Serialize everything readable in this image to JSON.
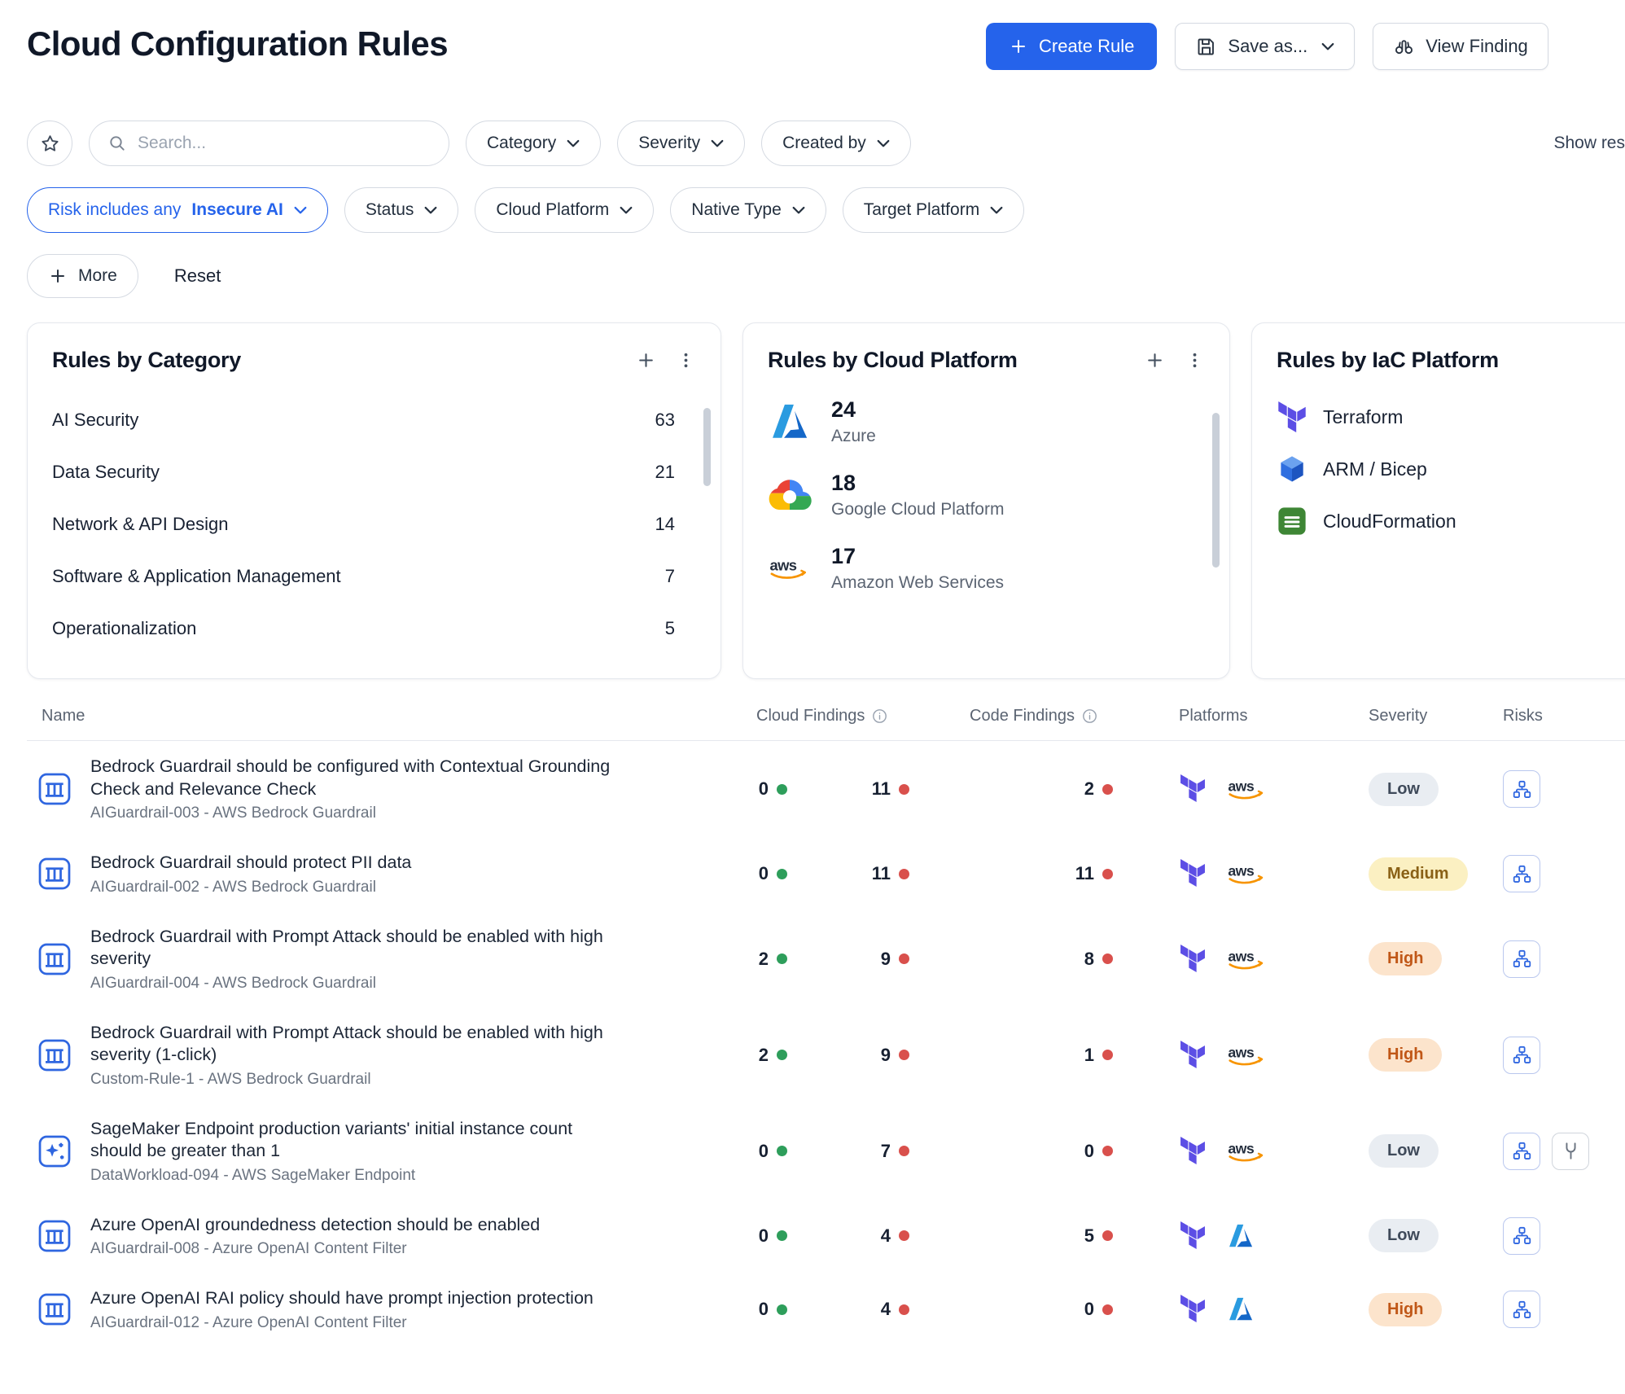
{
  "page": {
    "title": "Cloud Configuration Rules"
  },
  "toolbar": {
    "create_rule_label": "Create Rule",
    "save_as_label": "Save as...",
    "view_findings_label": "View Finding"
  },
  "filters": {
    "search_placeholder": "Search...",
    "show_results_label": "Show res",
    "row1": [
      "Category",
      "Severity",
      "Created by"
    ],
    "active_filter": {
      "prefix": "Risk includes any",
      "value": "Insecure AI"
    },
    "row2": [
      "Status",
      "Cloud Platform",
      "Native Type",
      "Target Platform"
    ],
    "more_label": "More",
    "reset_label": "Reset"
  },
  "cards": {
    "by_category": {
      "title": "Rules by Category",
      "items": [
        {
          "label": "AI Security",
          "value": 63
        },
        {
          "label": "Data Security",
          "value": 21
        },
        {
          "label": "Network & API Design",
          "value": 14
        },
        {
          "label": "Software & Application Management",
          "value": 7
        },
        {
          "label": "Operationalization",
          "value": 5
        }
      ]
    },
    "by_cloud_platform": {
      "title": "Rules by Cloud Platform",
      "items": [
        {
          "icon": "azure-icon",
          "value": 24,
          "label": "Azure"
        },
        {
          "icon": "gcp-icon",
          "value": 18,
          "label": "Google Cloud Platform"
        },
        {
          "icon": "aws-icon",
          "value": 17,
          "label": "Amazon Web Services"
        }
      ]
    },
    "by_iac_platform": {
      "title": "Rules by IaC Platform",
      "items": [
        {
          "icon": "terraform-icon",
          "label": "Terraform"
        },
        {
          "icon": "arm-bicep-icon",
          "label": "ARM / Bicep"
        },
        {
          "icon": "cloudformation-icon",
          "label": "CloudFormation"
        }
      ]
    }
  },
  "table": {
    "headers": {
      "name": "Name",
      "cloud_findings": "Cloud Findings",
      "code_findings": "Code Findings",
      "platforms": "Platforms",
      "severity": "Severity",
      "risks": "Risks"
    },
    "rows": [
      {
        "icon": "guardrail",
        "name": "Bedrock Guardrail should be configured with Contextual Grounding Check and Relevance Check",
        "subtitle": "AIGuardrail-003 - AWS Bedrock Guardrail",
        "cloud_pass": 0,
        "cloud_fail": 11,
        "code_findings": 2,
        "platforms": [
          "terraform",
          "aws"
        ],
        "severity": "Low",
        "risks": [
          "risk-graph"
        ]
      },
      {
        "icon": "guardrail",
        "name": "Bedrock Guardrail should protect PII data",
        "subtitle": "AIGuardrail-002 - AWS Bedrock Guardrail",
        "cloud_pass": 0,
        "cloud_fail": 11,
        "code_findings": 11,
        "platforms": [
          "terraform",
          "aws"
        ],
        "severity": "Medium",
        "risks": [
          "risk-graph"
        ]
      },
      {
        "icon": "guardrail",
        "name": "Bedrock Guardrail with Prompt Attack should be enabled with high severity",
        "subtitle": "AIGuardrail-004 - AWS Bedrock Guardrail",
        "cloud_pass": 2,
        "cloud_fail": 9,
        "code_findings": 8,
        "platforms": [
          "terraform",
          "aws"
        ],
        "severity": "High",
        "risks": [
          "risk-graph"
        ]
      },
      {
        "icon": "guardrail",
        "name": "Bedrock Guardrail with Prompt Attack should be enabled with high severity (1-click)",
        "subtitle": "Custom-Rule-1 - AWS Bedrock Guardrail",
        "cloud_pass": 2,
        "cloud_fail": 9,
        "code_findings": 1,
        "platforms": [
          "terraform",
          "aws"
        ],
        "severity": "High",
        "risks": [
          "risk-graph"
        ]
      },
      {
        "icon": "sparkle",
        "name": "SageMaker Endpoint production variants' initial instance count should be greater than 1",
        "subtitle": "DataWorkload-094 - AWS SageMaker Endpoint",
        "cloud_pass": 0,
        "cloud_fail": 7,
        "code_findings": 0,
        "platforms": [
          "terraform",
          "aws"
        ],
        "severity": "Low",
        "risks": [
          "risk-graph",
          "risk-fork"
        ]
      },
      {
        "icon": "guardrail",
        "name": "Azure OpenAI groundedness detection should be enabled",
        "subtitle": "AIGuardrail-008 - Azure OpenAI Content Filter",
        "cloud_pass": 0,
        "cloud_fail": 4,
        "code_findings": 5,
        "platforms": [
          "terraform",
          "azure"
        ],
        "severity": "Low",
        "risks": [
          "risk-graph"
        ]
      },
      {
        "icon": "guardrail",
        "name": "Azure OpenAI RAI policy should have prompt injection protection",
        "subtitle": "AIGuardrail-012 - Azure OpenAI Content Filter",
        "cloud_pass": 0,
        "cloud_fail": 4,
        "code_findings": 0,
        "platforms": [
          "terraform",
          "azure"
        ],
        "severity": "High",
        "risks": [
          "risk-graph"
        ]
      }
    ]
  },
  "colors": {
    "accent_blue": "#2563eb",
    "pass_dot_green": "#2e9e5b",
    "fail_dot_red": "#d9504c",
    "severity_low_bg": "#e9edf2",
    "severity_medium_bg": "#fbf0c2",
    "severity_high_bg": "#fce4cc"
  }
}
